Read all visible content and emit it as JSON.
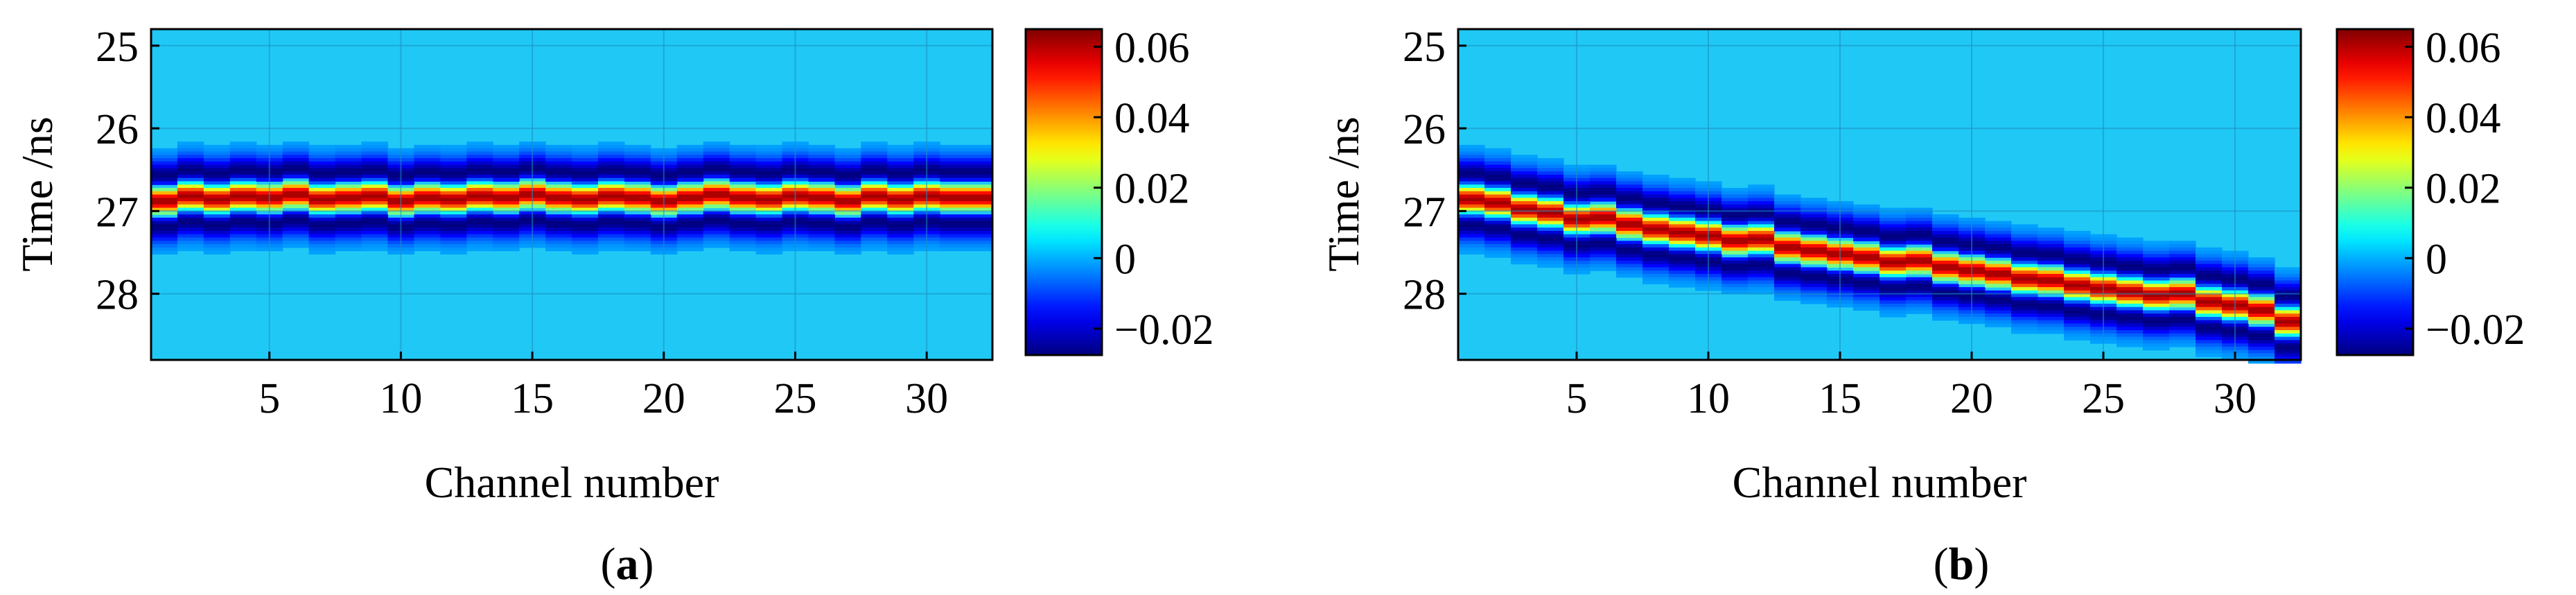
{
  "colors": {
    "background": "#20c8f5",
    "colormap": "jet",
    "grid": "#1c8fbf"
  },
  "chart_data": [
    {
      "type": "heatmap",
      "panel_label": "a",
      "xlabel": "Channel number",
      "ylabel": "Time /ns",
      "xticks": [
        5,
        10,
        15,
        20,
        25,
        30
      ],
      "yticks": [
        25,
        26,
        27,
        28
      ],
      "xlim": [
        0.5,
        32.5
      ],
      "ylim": [
        24.8,
        28.8
      ],
      "y_reversed": true,
      "grid": true,
      "colorbar": {
        "ticks": [
          "0.06",
          "0.04",
          "0.02",
          "0",
          "−0.02"
        ],
        "tick_values": [
          0.06,
          0.04,
          0.02,
          0,
          -0.02
        ],
        "range": [
          -0.0275,
          0.065
        ]
      },
      "channels": 32,
      "peak_time_ns": [
        26.88,
        26.82,
        26.86,
        26.82,
        26.84,
        26.8,
        26.86,
        26.84,
        26.82,
        26.88,
        26.84,
        26.86,
        26.82,
        26.84,
        26.8,
        26.84,
        26.86,
        26.82,
        26.84,
        26.88,
        26.84,
        26.8,
        26.84,
        26.86,
        26.82,
        26.84,
        26.88,
        26.82,
        26.86,
        26.82,
        26.84,
        26.84
      ],
      "pulse_amplitude": 0.062,
      "pulse_width_ns": 0.18
    },
    {
      "type": "heatmap",
      "panel_label": "b",
      "xlabel": "Channel number",
      "ylabel": "Time /ns",
      "xticks": [
        5,
        10,
        15,
        20,
        25,
        30
      ],
      "yticks": [
        25,
        26,
        27,
        28
      ],
      "xlim": [
        0.5,
        32.5
      ],
      "ylim": [
        24.8,
        28.8
      ],
      "y_reversed": true,
      "grid": true,
      "colorbar": {
        "ticks": [
          "0.06",
          "0.04",
          "0.02",
          "0",
          "−0.02"
        ],
        "tick_values": [
          0.06,
          0.04,
          0.02,
          0,
          -0.02
        ],
        "range": [
          -0.0275,
          0.065
        ]
      },
      "channels": 32,
      "peak_time_ns": [
        26.86,
        26.9,
        26.98,
        27.02,
        27.1,
        27.08,
        27.16,
        27.22,
        27.26,
        27.3,
        27.36,
        27.34,
        27.44,
        27.48,
        27.52,
        27.56,
        27.62,
        27.6,
        27.68,
        27.72,
        27.76,
        27.82,
        27.84,
        27.9,
        27.94,
        27.98,
        28.02,
        28.0,
        28.1,
        28.14,
        28.2,
        28.34
      ],
      "pulse_amplitude": 0.062,
      "pulse_width_ns": 0.18
    }
  ]
}
